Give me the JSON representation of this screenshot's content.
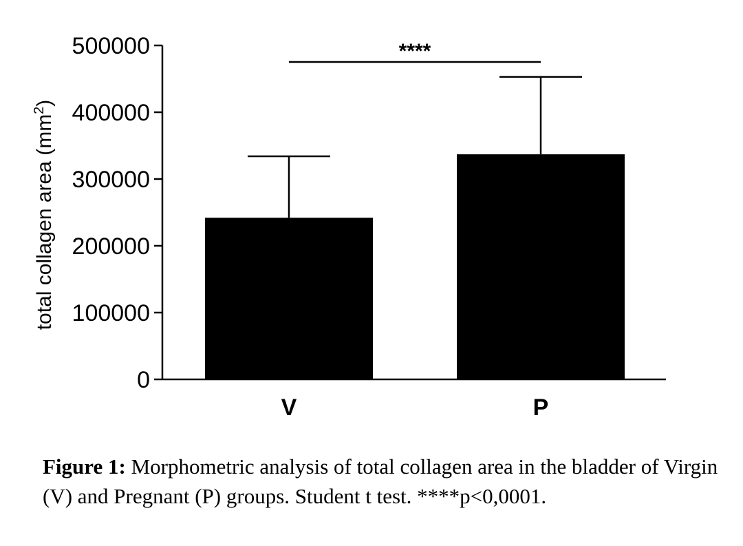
{
  "chart_data": {
    "type": "bar",
    "categories": [
      "V",
      "P"
    ],
    "values": [
      242000,
      337000
    ],
    "error": [
      92000,
      116000
    ],
    "ylabel": "total collagen area (mm²)",
    "ylabel_main": "total collagen area (mm",
    "ylabel_sup": "2",
    "ylabel_end": ")",
    "ylim": [
      0,
      500000
    ],
    "yticks": [
      0,
      100000,
      200000,
      300000,
      400000,
      500000
    ],
    "ytick_labels": [
      "0",
      "100000",
      "200000",
      "300000",
      "400000",
      "500000"
    ],
    "bar_color": "#000000",
    "grid": false,
    "significance": {
      "between": [
        "V",
        "P"
      ],
      "label": "****"
    }
  },
  "caption": {
    "label": "Figure 1:",
    "text": " Morphometric analysis of total collagen area in the bladder of Virgin (V) and Pregnant (P) groups. Student t test. ****p<0,0001."
  }
}
